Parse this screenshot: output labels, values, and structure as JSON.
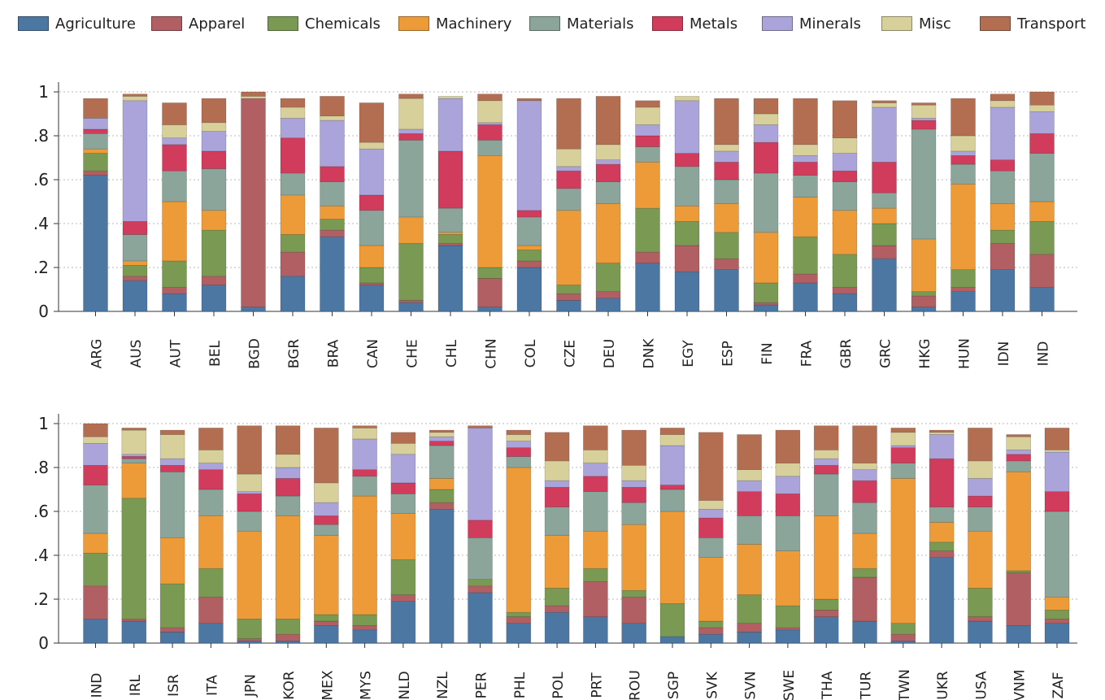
{
  "chart_data": {
    "type": "bar",
    "stacked": true,
    "ylim": [
      0,
      1.0
    ],
    "yticks": [
      0,
      0.2,
      0.4,
      0.6,
      0.8,
      1.0
    ],
    "ytick_labels": [
      "0",
      ".2",
      ".4",
      ".6",
      ".8",
      "1"
    ],
    "grid": "horizontal dotted",
    "legend_position": "top",
    "categories": [
      "Agriculture",
      "Apparel",
      "Chemicals",
      "Machinery",
      "Materials",
      "Metals",
      "Minerals",
      "Misc",
      "Transport"
    ],
    "colors": [
      "#4c77a3",
      "#b15f63",
      "#7a9a53",
      "#ed9b39",
      "#8ba59b",
      "#d13b5c",
      "#aaa4da",
      "#d8d09a",
      "#b36e52"
    ],
    "panels": [
      {
        "countries": [
          "ARG",
          "AUS",
          "AUT",
          "BEL",
          "BGD",
          "BGR",
          "BRA",
          "CAN",
          "CHE",
          "CHL",
          "CHN",
          "COL",
          "CZE",
          "DEU",
          "DNK",
          "EGY",
          "ESP",
          "FIN",
          "FRA",
          "GBR",
          "GRC",
          "HKG",
          "HUN",
          "IDN",
          "IND"
        ],
        "values": [
          [
            0.62,
            0.02,
            0.08,
            0.02,
            0.07,
            0.02,
            0.05,
            0.0,
            0.09
          ],
          [
            0.14,
            0.02,
            0.05,
            0.02,
            0.12,
            0.06,
            0.55,
            0.02,
            0.01
          ],
          [
            0.08,
            0.03,
            0.12,
            0.27,
            0.14,
            0.12,
            0.03,
            0.06,
            0.1
          ],
          [
            0.12,
            0.04,
            0.21,
            0.09,
            0.19,
            0.08,
            0.09,
            0.04,
            0.11
          ],
          [
            0.02,
            0.95,
            0.0,
            0.0,
            0.0,
            0.0,
            0.0,
            0.01,
            0.02
          ],
          [
            0.16,
            0.11,
            0.08,
            0.18,
            0.1,
            0.16,
            0.09,
            0.05,
            0.04
          ],
          [
            0.34,
            0.03,
            0.05,
            0.06,
            0.11,
            0.07,
            0.21,
            0.02,
            0.09
          ],
          [
            0.12,
            0.01,
            0.07,
            0.1,
            0.16,
            0.07,
            0.21,
            0.03,
            0.18
          ],
          [
            0.04,
            0.01,
            0.26,
            0.12,
            0.35,
            0.03,
            0.02,
            0.14,
            0.02
          ],
          [
            0.3,
            0.01,
            0.04,
            0.01,
            0.11,
            0.26,
            0.24,
            0.01,
            0.0
          ],
          [
            0.02,
            0.13,
            0.05,
            0.51,
            0.07,
            0.07,
            0.01,
            0.1,
            0.03
          ],
          [
            0.2,
            0.03,
            0.05,
            0.02,
            0.13,
            0.03,
            0.5,
            0.0,
            0.01
          ],
          [
            0.05,
            0.03,
            0.04,
            0.34,
            0.1,
            0.08,
            0.02,
            0.08,
            0.23
          ],
          [
            0.06,
            0.03,
            0.13,
            0.27,
            0.1,
            0.08,
            0.02,
            0.07,
            0.22
          ],
          [
            0.22,
            0.05,
            0.2,
            0.21,
            0.07,
            0.05,
            0.05,
            0.08,
            0.03
          ],
          [
            0.18,
            0.12,
            0.11,
            0.07,
            0.18,
            0.06,
            0.24,
            0.02,
            0.0
          ],
          [
            0.19,
            0.05,
            0.12,
            0.13,
            0.11,
            0.08,
            0.05,
            0.03,
            0.21
          ],
          [
            0.03,
            0.01,
            0.09,
            0.23,
            0.27,
            0.14,
            0.08,
            0.05,
            0.07
          ],
          [
            0.13,
            0.04,
            0.17,
            0.18,
            0.1,
            0.06,
            0.03,
            0.05,
            0.21
          ],
          [
            0.08,
            0.03,
            0.15,
            0.2,
            0.13,
            0.05,
            0.08,
            0.07,
            0.17
          ],
          [
            0.24,
            0.06,
            0.1,
            0.07,
            0.07,
            0.14,
            0.25,
            0.02,
            0.01
          ],
          [
            0.02,
            0.05,
            0.02,
            0.24,
            0.5,
            0.04,
            0.01,
            0.06,
            0.01
          ],
          [
            0.09,
            0.02,
            0.08,
            0.39,
            0.09,
            0.04,
            0.02,
            0.07,
            0.17
          ],
          [
            0.19,
            0.12,
            0.06,
            0.12,
            0.15,
            0.05,
            0.24,
            0.03,
            0.03
          ],
          [
            0.11,
            0.15,
            0.15,
            0.09,
            0.22,
            0.09,
            0.1,
            0.03,
            0.06
          ]
        ]
      },
      {
        "countries": [
          "IND",
          "IRL",
          "ISR",
          "ITA",
          "JPN",
          "KOR",
          "MEX",
          "MYS",
          "NLD",
          "NZL",
          "PER",
          "PHL",
          "POL",
          "PRT",
          "ROU",
          "SGP",
          "SVK",
          "SVN",
          "SWE",
          "THA",
          "TUR",
          "TWN",
          "UKR",
          "USA",
          "VNM",
          "ZAF"
        ],
        "values": [
          [
            0.11,
            0.15,
            0.15,
            0.09,
            0.22,
            0.09,
            0.1,
            0.03,
            0.06
          ],
          [
            0.1,
            0.01,
            0.55,
            0.16,
            0.02,
            0.01,
            0.01,
            0.11,
            0.01
          ],
          [
            0.05,
            0.02,
            0.2,
            0.21,
            0.3,
            0.03,
            0.03,
            0.11,
            0.02
          ],
          [
            0.09,
            0.12,
            0.13,
            0.24,
            0.12,
            0.09,
            0.03,
            0.06,
            0.1
          ],
          [
            0.01,
            0.01,
            0.09,
            0.4,
            0.09,
            0.08,
            0.01,
            0.08,
            0.22
          ],
          [
            0.01,
            0.03,
            0.07,
            0.47,
            0.09,
            0.08,
            0.05,
            0.06,
            0.13
          ],
          [
            0.08,
            0.02,
            0.03,
            0.36,
            0.05,
            0.04,
            0.06,
            0.09,
            0.25
          ],
          [
            0.06,
            0.02,
            0.05,
            0.54,
            0.09,
            0.03,
            0.14,
            0.05,
            0.01
          ],
          [
            0.19,
            0.03,
            0.16,
            0.21,
            0.09,
            0.05,
            0.13,
            0.05,
            0.05
          ],
          [
            0.61,
            0.03,
            0.06,
            0.05,
            0.15,
            0.02,
            0.02,
            0.02,
            0.01
          ],
          [
            0.23,
            0.03,
            0.03,
            0.0,
            0.19,
            0.08,
            0.42,
            0.0,
            0.01
          ],
          [
            0.09,
            0.03,
            0.02,
            0.66,
            0.05,
            0.04,
            0.03,
            0.03,
            0.02
          ],
          [
            0.14,
            0.03,
            0.08,
            0.24,
            0.13,
            0.09,
            0.03,
            0.09,
            0.13
          ],
          [
            0.12,
            0.16,
            0.06,
            0.17,
            0.18,
            0.07,
            0.06,
            0.06,
            0.11
          ],
          [
            0.09,
            0.12,
            0.03,
            0.3,
            0.1,
            0.07,
            0.03,
            0.07,
            0.16
          ],
          [
            0.03,
            0.0,
            0.15,
            0.42,
            0.1,
            0.02,
            0.18,
            0.05,
            0.03
          ],
          [
            0.04,
            0.03,
            0.03,
            0.29,
            0.09,
            0.09,
            0.04,
            0.04,
            0.31
          ],
          [
            0.05,
            0.04,
            0.13,
            0.23,
            0.13,
            0.11,
            0.05,
            0.05,
            0.16
          ],
          [
            0.06,
            0.01,
            0.1,
            0.25,
            0.16,
            0.1,
            0.08,
            0.06,
            0.15
          ],
          [
            0.12,
            0.03,
            0.05,
            0.38,
            0.19,
            0.04,
            0.03,
            0.04,
            0.11
          ],
          [
            0.1,
            0.2,
            0.04,
            0.16,
            0.14,
            0.1,
            0.05,
            0.03,
            0.17
          ],
          [
            0.01,
            0.03,
            0.05,
            0.66,
            0.07,
            0.07,
            0.01,
            0.06,
            0.02
          ],
          [
            0.39,
            0.03,
            0.04,
            0.09,
            0.07,
            0.22,
            0.11,
            0.01,
            0.01
          ],
          [
            0.1,
            0.02,
            0.13,
            0.26,
            0.11,
            0.05,
            0.08,
            0.08,
            0.15
          ],
          [
            0.08,
            0.24,
            0.01,
            0.45,
            0.05,
            0.03,
            0.02,
            0.06,
            0.01
          ],
          [
            0.09,
            0.02,
            0.04,
            0.06,
            0.39,
            0.09,
            0.18,
            0.01,
            0.1
          ]
        ]
      }
    ]
  }
}
